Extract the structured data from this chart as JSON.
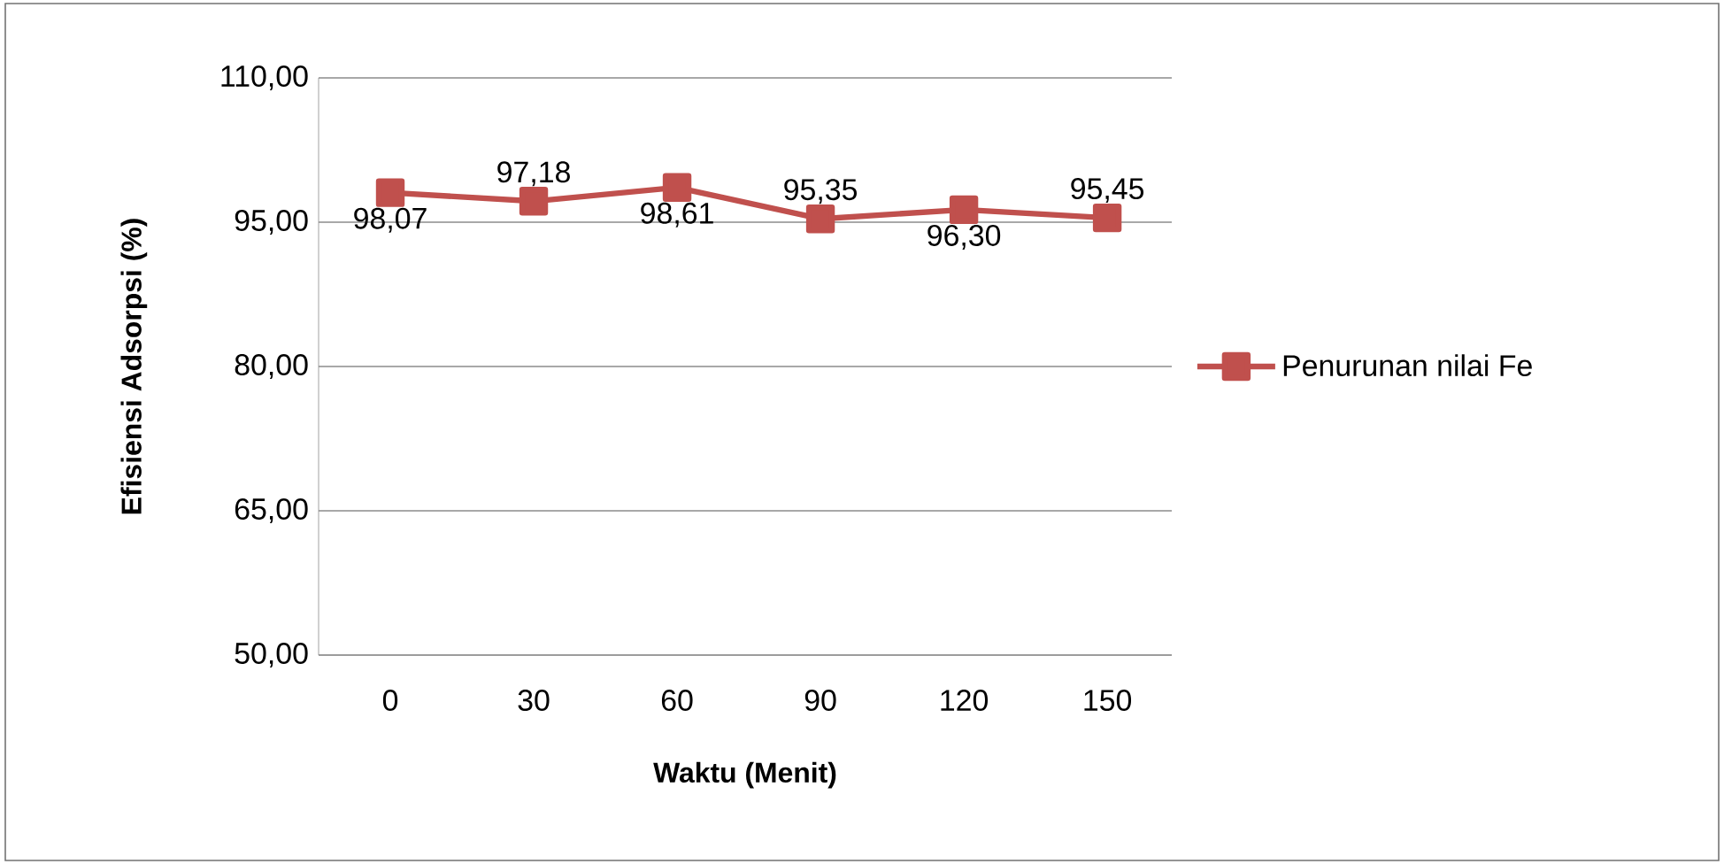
{
  "chart_data": {
    "type": "line",
    "xlabel": "Waktu (Menit)",
    "ylabel": "Efisiensi Adsorpsi (%)",
    "categories": [
      "0",
      "30",
      "60",
      "90",
      "120",
      "150"
    ],
    "series": [
      {
        "name": "Penurunan nilai Fe",
        "color": "#c0504d",
        "values": [
          98.07,
          97.18,
          98.61,
          95.35,
          96.3,
          95.45
        ],
        "value_labels": [
          "98,07",
          "97,18",
          "98,61",
          "95,35",
          "96,30",
          "95,45"
        ]
      }
    ],
    "ylim": [
      50,
      110
    ],
    "yticks": [
      {
        "value": 50,
        "label": "50,00"
      },
      {
        "value": 65,
        "label": "65,00"
      },
      {
        "value": 80,
        "label": "80,00"
      },
      {
        "value": 95,
        "label": "95,00"
      },
      {
        "value": 110,
        "label": "110,00"
      }
    ],
    "grid": "y",
    "legend": "right",
    "marker": "square",
    "line_style": "solid"
  }
}
